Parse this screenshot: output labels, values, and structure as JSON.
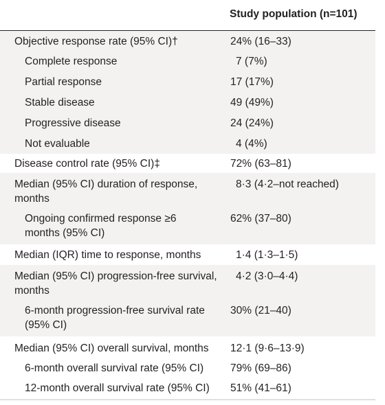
{
  "header": {
    "column_label": "Study population (n=101)"
  },
  "rows": [
    {
      "label": [
        "Objective response rate (95% CI)†"
      ],
      "value": "24% (16–33)"
    },
    {
      "label": [
        "Complete response"
      ],
      "value": "7 (7%)"
    },
    {
      "label": [
        "Partial response"
      ],
      "value": "17 (17%)"
    },
    {
      "label": [
        "Stable disease"
      ],
      "value": "49 (49%)"
    },
    {
      "label": [
        "Progressive disease"
      ],
      "value": "24 (24%)"
    },
    {
      "label": [
        "Not evaluable"
      ],
      "value": "4 (4%)"
    },
    {
      "label": [
        "Disease control rate (95% CI)‡"
      ],
      "value": "72% (63–81)"
    },
    {
      "label": [
        "Median (95% CI) duration of response,",
        "months"
      ],
      "value": "8·3 (4·2–not reached)"
    },
    {
      "label": [
        "Ongoing confirmed response ≥6",
        "months (95% CI)"
      ],
      "value": "62% (37–80)"
    },
    {
      "label": [
        "Median (IQR) time to response, months"
      ],
      "value": "1·4 (1·3–1·5)"
    },
    {
      "label": [
        "Median (95% CI) progression-free survival,",
        "months"
      ],
      "value": "4·2 (3·0–4·4)"
    },
    {
      "label": [
        "6-month progression-free survival rate",
        "(95% CI)"
      ],
      "value": "30% (21–40)"
    },
    {
      "label": [
        "Median (95% CI) overall survival, months"
      ],
      "value": "12·1 (9·6–13·9)"
    },
    {
      "label": [
        "6-month overall survival rate (95% CI)"
      ],
      "value": "79% (69–86)"
    },
    {
      "label": [
        "12-month overall survival rate (95% CI)"
      ],
      "value": "51% (41–61)"
    }
  ],
  "colors": {
    "band": "#f3f2f1",
    "white": "#ffffff",
    "rule": "#222222",
    "text": "#231f20"
  }
}
